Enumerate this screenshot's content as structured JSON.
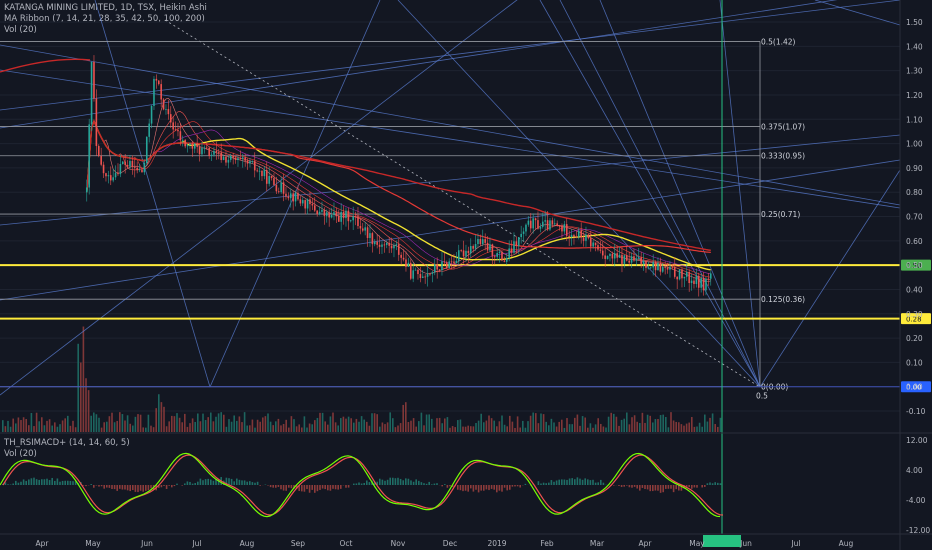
{
  "header": {
    "symbol_line": "KATANGA MINING LIMITED, 1D, TSX, Heikin Ashi",
    "ma_ribbon": "MA Ribbon (7, 14, 21, 28, 35, 42, 50, 100, 200)",
    "vol_main": "Vol (20)"
  },
  "indicator": {
    "title": "TH_RSIMACD+ (14, 14, 60, 5)",
    "vol": "Vol (20)"
  },
  "colors": {
    "background": "#131722",
    "up": "#26a69a",
    "down": "#ef5350",
    "ema_fast": "#f0e130",
    "ma_mid": "#e53935",
    "ma_slow": "#c62828",
    "trendline": "#5b7fd6",
    "horizontal_yellow": "#ffeb3b",
    "fib_line": "#9598a1",
    "vertical_line": "#26c281"
  },
  "chart_data": [
    {
      "type": "candlestick",
      "title": "KATANGA MINING LIMITED, 1D, TSX, Heikin Ashi",
      "x_ticks": [
        "Apr",
        "May",
        "Jun",
        "Jul",
        "Aug",
        "Sep",
        "Oct",
        "Nov",
        "Dec",
        "2019",
        "Feb",
        "Mar",
        "Apr",
        "May",
        "Jun",
        "Jul",
        "Aug"
      ],
      "y_ticks": [
        1.5,
        1.4,
        1.3,
        1.2,
        1.1,
        1.0,
        0.9,
        0.8,
        0.7,
        0.6,
        0.5,
        0.4,
        0.3,
        0.2,
        0.1,
        0.0,
        -0.1
      ],
      "ylim": [
        -0.12,
        1.58
      ],
      "price_path": [
        {
          "date": "2018-04-28",
          "price": 0.8
        },
        {
          "date": "2018-05-01",
          "price": 1.35
        },
        {
          "date": "2018-05-04",
          "price": 0.95
        },
        {
          "date": "2018-05-10",
          "price": 0.85
        },
        {
          "date": "2018-05-20",
          "price": 0.92
        },
        {
          "date": "2018-06-01",
          "price": 0.88
        },
        {
          "date": "2018-06-08",
          "price": 1.28
        },
        {
          "date": "2018-06-15",
          "price": 1.12
        },
        {
          "date": "2018-06-25",
          "price": 1.0
        },
        {
          "date": "2018-07-15",
          "price": 0.95
        },
        {
          "date": "2018-08-05",
          "price": 0.91
        },
        {
          "date": "2018-08-20",
          "price": 0.83
        },
        {
          "date": "2018-09-05",
          "price": 0.76
        },
        {
          "date": "2018-09-20",
          "price": 0.7
        },
        {
          "date": "2018-10-05",
          "price": 0.7
        },
        {
          "date": "2018-10-20",
          "price": 0.59
        },
        {
          "date": "2018-11-01",
          "price": 0.57
        },
        {
          "date": "2018-11-10",
          "price": 0.46
        },
        {
          "date": "2018-11-20",
          "price": 0.47
        },
        {
          "date": "2018-12-05",
          "price": 0.52
        },
        {
          "date": "2018-12-20",
          "price": 0.6
        },
        {
          "date": "2019-01-05",
          "price": 0.52
        },
        {
          "date": "2019-01-20",
          "price": 0.67
        },
        {
          "date": "2019-02-05",
          "price": 0.66
        },
        {
          "date": "2019-02-20",
          "price": 0.62
        },
        {
          "date": "2019-03-10",
          "price": 0.53
        },
        {
          "date": "2019-04-01",
          "price": 0.51
        },
        {
          "date": "2019-04-20",
          "price": 0.46
        },
        {
          "date": "2019-05-05",
          "price": 0.42
        },
        {
          "date": "2019-05-10",
          "price": 0.47
        }
      ],
      "horizontal_levels": [
        {
          "label": "0.50",
          "value": 0.5
        },
        {
          "label": "0.28",
          "value": 0.28
        },
        {
          "label": "0.00",
          "value": 0.0
        }
      ],
      "fib_levels": [
        {
          "label": "0.5(1.42)",
          "value": 1.42
        },
        {
          "label": "0.375(1.07)",
          "value": 1.07
        },
        {
          "label": "0.333(0.95)",
          "value": 0.95
        },
        {
          "label": "0.25(0.71)",
          "value": 0.71
        },
        {
          "label": "0.125(0.36)",
          "value": 0.36
        },
        {
          "label": "0(0.00)",
          "value": 0.0
        }
      ],
      "fib_extra_label": "0.5"
    },
    {
      "type": "oscillator",
      "title": "TH_RSIMACD+ (14, 14, 60, 5)",
      "y_ticks": [
        12.0,
        4.0,
        -4.0,
        -12.0
      ],
      "y_tick_labels": [
        "12.00",
        "4.00",
        "-4.00",
        "-12.00"
      ],
      "ylim": [
        -13,
        13
      ],
      "date_badge": ""
    }
  ]
}
